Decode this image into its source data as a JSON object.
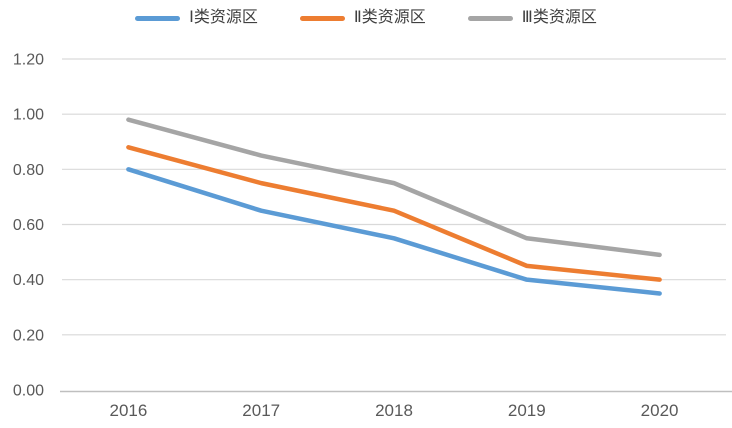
{
  "chart": {
    "background_color": "#ffffff",
    "text_color": "#595959",
    "legend_text_color": "#404040",
    "gridline_color": "#d9d9d9",
    "axis_line_color": "#bfbfbf"
  },
  "chart_data": {
    "type": "line",
    "title": "",
    "xlabel": "",
    "ylabel": "",
    "categories": [
      "2016",
      "2017",
      "2018",
      "2019",
      "2020"
    ],
    "series": [
      {
        "name": "Ⅰ类资源区",
        "color": "#5b9bd5",
        "values": [
          0.8,
          0.65,
          0.55,
          0.4,
          0.35
        ]
      },
      {
        "name": "Ⅱ类资源区",
        "color": "#ed7d31",
        "values": [
          0.88,
          0.75,
          0.65,
          0.45,
          0.4
        ]
      },
      {
        "name": "Ⅲ类资源区",
        "color": "#a5a5a5",
        "values": [
          0.98,
          0.85,
          0.75,
          0.55,
          0.49
        ]
      }
    ],
    "ylim": [
      0.0,
      1.2
    ],
    "ytick_labels": [
      "0.00",
      "0.20",
      "0.40",
      "0.60",
      "0.80",
      "1.00",
      "1.20"
    ],
    "grid": true,
    "legend_position": "top-center"
  }
}
